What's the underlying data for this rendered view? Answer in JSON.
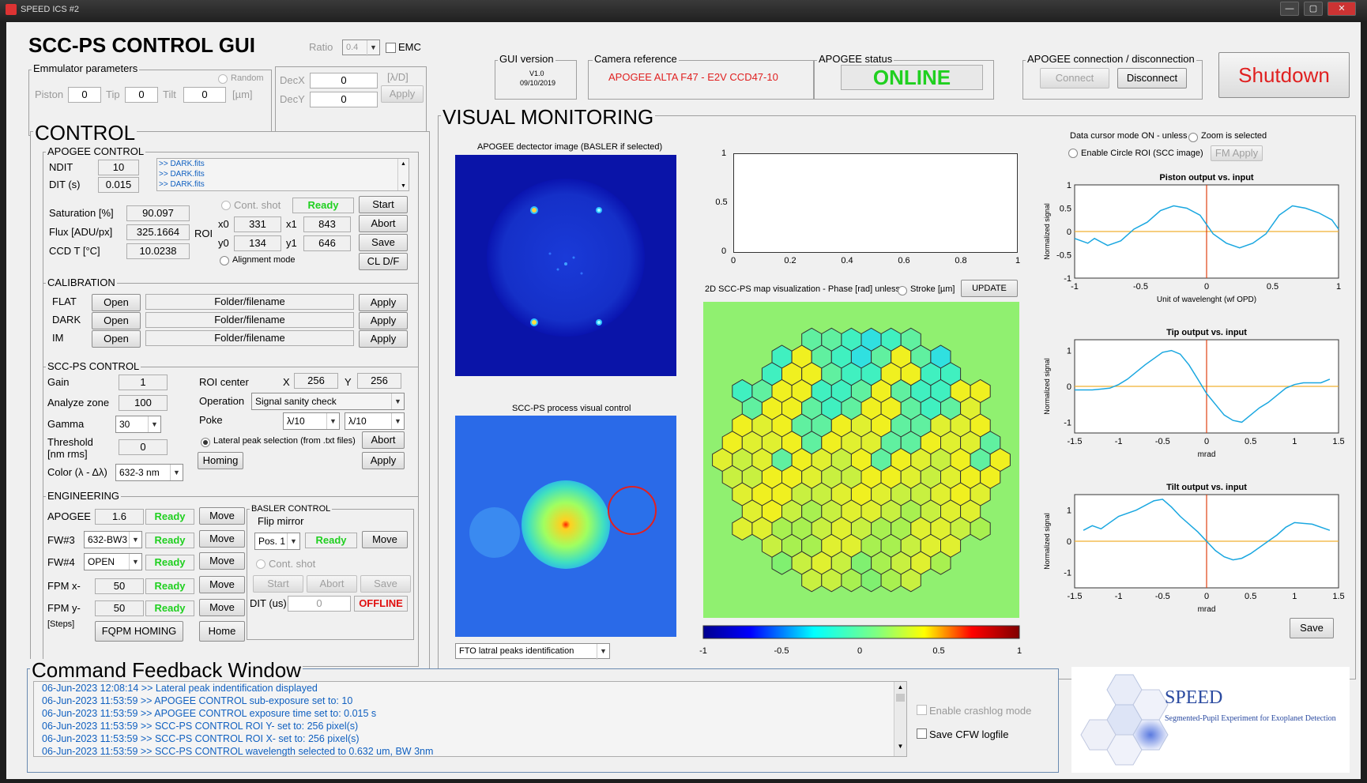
{
  "window": {
    "title": "SPEED ICS #2",
    "min": "—",
    "max": "▢",
    "close": "✕"
  },
  "header": {
    "title": "SCC-PS CONTROL GUI",
    "ratio_label": "Ratio",
    "ratio_value": "0.4",
    "emc_label": "EMC",
    "emu_title": "Emmulator parameters",
    "random_label": "Random",
    "piston_label": "Piston",
    "piston_value": "0",
    "tip_label": "Tip",
    "tip_value": "0",
    "tilt_label": "Tilt",
    "tilt_value": "0",
    "unit_um": "[µm]",
    "decx_label": "DecX",
    "decx_value": "0",
    "decy_label": "DecY",
    "decy_value": "0",
    "unit_lam": "[λ/D]",
    "apply_label": "Apply"
  },
  "top": {
    "gui_version_label": "GUI version",
    "gui_version": "V1.0",
    "gui_date": "09/10/2019",
    "cam_ref_label": "Camera reference",
    "cam_ref": "APOGEE ALTA F47 - E2V CCD47-10",
    "apogee_status_label": "APOGEE status",
    "apogee_status": "ONLINE",
    "conn_label": "APOGEE connection / disconnection",
    "connect": "Connect",
    "disconnect": "Disconnect",
    "shutdown": "Shutdown"
  },
  "control": {
    "title": "CONTROL",
    "apogee": {
      "title": "APOGEE CONTROL",
      "ndit_label": "NDIT",
      "ndit": "10",
      "dit_label": "DIT (s)",
      "dit": "0.015",
      "files": [
        ">> DARK.fits",
        ">> DARK.fits",
        ">> DARK.fits"
      ],
      "saturation_label": "Saturation [%]",
      "saturation": "90.097",
      "flux_label": "Flux [ADU/px]",
      "flux": "325.1664",
      "ccdt_label": "CCD T [°C]",
      "ccdt": "10.0238",
      "roi_label": "ROI",
      "cont_shot": "Cont. shot",
      "ready": "Ready",
      "start": "Start",
      "x0_label": "x0",
      "x0": "331",
      "x1_label": "x1",
      "x1": "843",
      "abort": "Abort",
      "y0_label": "y0",
      "y0": "134",
      "y1_label": "y1",
      "y1": "646",
      "save": "Save",
      "alignment": "Alignment mode",
      "cldf": "CL D/F"
    },
    "calibration": {
      "title": "CALIBRATION",
      "rows": [
        {
          "name": "FLAT",
          "open": "Open",
          "file": "Folder/filename",
          "apply": "Apply"
        },
        {
          "name": "DARK",
          "open": "Open",
          "file": "Folder/filename",
          "apply": "Apply"
        },
        {
          "name": "IM",
          "open": "Open",
          "file": "Folder/filename",
          "apply": "Apply"
        }
      ]
    },
    "sccps": {
      "title": "SCC-PS CONTROL",
      "gain_label": "Gain",
      "gain": "1",
      "zone_label": "Analyze zone",
      "zone": "100",
      "gamma_label": "Gamma",
      "gamma": "30",
      "thr_label1": "Threshold",
      "thr_label2": "[nm rms]",
      "thr": "0",
      "color_label": "Color (λ - Δλ)",
      "color": "632-3 nm",
      "roi_center": "ROI center",
      "x_label": "X",
      "x": "256",
      "y_label": "Y",
      "y": "256",
      "op_label": "Operation",
      "op": "Signal sanity check",
      "poke_label": "Poke",
      "poke1": "λ/10",
      "poke2": "λ/10",
      "lateral": "Lateral peak selection (from .txt files)",
      "abort": "Abort",
      "homing": "Homing",
      "apply": "Apply"
    },
    "engineering": {
      "title": "ENGINEERING",
      "rows": [
        {
          "name": "APOGEE",
          "value": "1.6",
          "status": "Ready",
          "move": "Move"
        },
        {
          "name": "FW#3",
          "value": "632-BW3",
          "status": "Ready",
          "move": "Move"
        },
        {
          "name": "FW#4",
          "value": "OPEN",
          "status": "Ready",
          "move": "Move"
        },
        {
          "name": "FPM x-",
          "value": "50",
          "status": "Ready",
          "move": "Move"
        },
        {
          "name": "FPM y-",
          "value": "50",
          "status": "Ready",
          "move": "Move"
        }
      ],
      "steps": "[Steps]",
      "fqpm": "FQPM HOMING",
      "home": "Home",
      "basler": {
        "title": "BASLER CONTROL",
        "flip": "Flip mirror",
        "pos": "Pos. 1",
        "status": "Ready",
        "move": "Move",
        "cont_shot": "Cont. shot",
        "start": "Start",
        "abort": "Abort",
        "save": "Save",
        "dit_label": "DIT (us)",
        "dit": "0",
        "offline": "OFFLINE"
      }
    }
  },
  "visual": {
    "title": "VISUAL MONITORING",
    "img1_title": "APOGEE dectector image (BASLER if selected)",
    "img2_title": "SCC-PS process visual control",
    "fto_select": "FTO latral peaks identification",
    "empty_plot": {
      "y_ticks": [
        "1",
        "0.5",
        "0"
      ],
      "x_ticks": [
        "0",
        "0.2",
        "0.4",
        "0.6",
        "0.8",
        "1"
      ]
    },
    "map_title": "2D SCC-PS map visualization - Phase [rad] unless",
    "stroke_label": "Stroke [µm]",
    "update": "UPDATE",
    "colorbar_ticks": [
      "-1",
      "-0.5",
      "0",
      "0.5",
      "1"
    ],
    "data_cursor": "Data cursor mode ON - unless",
    "zoom": "Zoom is selected",
    "circle_roi": "Enable Circle ROI (SCC image)",
    "fm_apply": "FM Apply",
    "save": "Save"
  },
  "chart_data": [
    {
      "type": "line",
      "title": "Piston output vs. input",
      "xlabel": "Unit of wavelenght (wf OPD)",
      "ylabel": "Normalized signal",
      "xlim": [
        -1,
        1
      ],
      "ylim": [
        -1,
        1
      ],
      "x_ticks": [
        "-1",
        "-0.5",
        "0",
        "0.5",
        "1"
      ],
      "y_ticks": [
        "1",
        "0.5",
        "0",
        "-0.5",
        "-1"
      ],
      "x": [
        -1,
        -0.9,
        -0.85,
        -0.75,
        -0.65,
        -0.55,
        -0.45,
        -0.35,
        -0.25,
        -0.15,
        -0.05,
        0,
        0.05,
        0.15,
        0.25,
        0.35,
        0.45,
        0.55,
        0.65,
        0.75,
        0.85,
        0.95,
        1
      ],
      "y": [
        -0.15,
        -0.25,
        -0.15,
        -0.3,
        -0.2,
        0.05,
        0.2,
        0.45,
        0.55,
        0.5,
        0.35,
        0.15,
        -0.05,
        -0.25,
        -0.35,
        -0.25,
        -0.05,
        0.35,
        0.55,
        0.5,
        0.4,
        0.25,
        0.05
      ]
    },
    {
      "type": "line",
      "title": "Tip output vs. input",
      "xlabel": "mrad",
      "ylabel": "Normalized signal",
      "xlim": [
        -1.5,
        1.5
      ],
      "ylim": [
        -1.3,
        1.3
      ],
      "x_ticks": [
        "-1.5",
        "-1",
        "-0.5",
        "0",
        "0.5",
        "1",
        "1.5"
      ],
      "y_ticks": [
        "1",
        "0",
        "-1"
      ],
      "x": [
        -1.5,
        -1.3,
        -1.1,
        -1.0,
        -0.9,
        -0.7,
        -0.5,
        -0.4,
        -0.3,
        -0.2,
        -0.1,
        0,
        0.1,
        0.2,
        0.3,
        0.4,
        0.5,
        0.6,
        0.7,
        0.8,
        0.9,
        1.0,
        1.1,
        1.3,
        1.4
      ],
      "y": [
        -0.1,
        -0.1,
        -0.05,
        0.05,
        0.2,
        0.6,
        0.95,
        1.0,
        0.9,
        0.6,
        0.2,
        -0.2,
        -0.5,
        -0.8,
        -0.95,
        -1.0,
        -0.8,
        -0.6,
        -0.45,
        -0.25,
        -0.05,
        0.05,
        0.1,
        0.1,
        0.2
      ]
    },
    {
      "type": "line",
      "title": "Tilt output vs. input",
      "xlabel": "mrad",
      "ylabel": "Normalized signal",
      "xlim": [
        -1.5,
        1.5
      ],
      "ylim": [
        -1.5,
        1.5
      ],
      "x_ticks": [
        "-1.5",
        "-1",
        "-0.5",
        "0",
        "0.5",
        "1",
        "1.5"
      ],
      "y_ticks": [
        "1",
        "0",
        "-1"
      ],
      "x": [
        -1.4,
        -1.3,
        -1.2,
        -1.0,
        -0.8,
        -0.6,
        -0.5,
        -0.4,
        -0.3,
        -0.1,
        0,
        0.1,
        0.2,
        0.3,
        0.4,
        0.5,
        0.6,
        0.7,
        0.8,
        0.9,
        1.0,
        1.2,
        1.4
      ],
      "y": [
        0.35,
        0.5,
        0.4,
        0.8,
        1.0,
        1.3,
        1.35,
        1.1,
        0.8,
        0.3,
        0.0,
        -0.3,
        -0.5,
        -0.6,
        -0.55,
        -0.4,
        -0.2,
        0.0,
        0.2,
        0.45,
        0.6,
        0.55,
        0.35
      ]
    }
  ],
  "feedback": {
    "title": "Command Feedback Window",
    "lines": [
      "06-Jun-2023 12:08:14 >> Lateral peak indentification displayed",
      "06-Jun-2023 11:53:59 >> APOGEE CONTROL sub-exposure set to: 10",
      "06-Jun-2023 11:53:59 >> APOGEE CONTROL exposure time set to: 0.015 s",
      "06-Jun-2023 11:53:59 >> SCC-PS CONTROL ROI Y- set to: 256 pixel(s)",
      "06-Jun-2023 11:53:59 >> SCC-PS CONTROL ROI X- set to: 256 pixel(s)",
      "06-Jun-2023 11:53:59 >> SCC-PS CONTROL wavelength selected to 0.632 um, BW 3nm"
    ],
    "crashlog": "Enable crashlog mode",
    "save_cfw": "Save CFW logfile"
  },
  "logo": {
    "name": "SPEED",
    "subtitle": "Segmented-Pupil Experiment for Exoplanet Detection"
  },
  "colors": {
    "ready": "#20d020",
    "offline": "#e01010",
    "online": "#20d020",
    "line": "#1aa7e0",
    "zero": "#f0b030",
    "cursor": "#e04010"
  }
}
